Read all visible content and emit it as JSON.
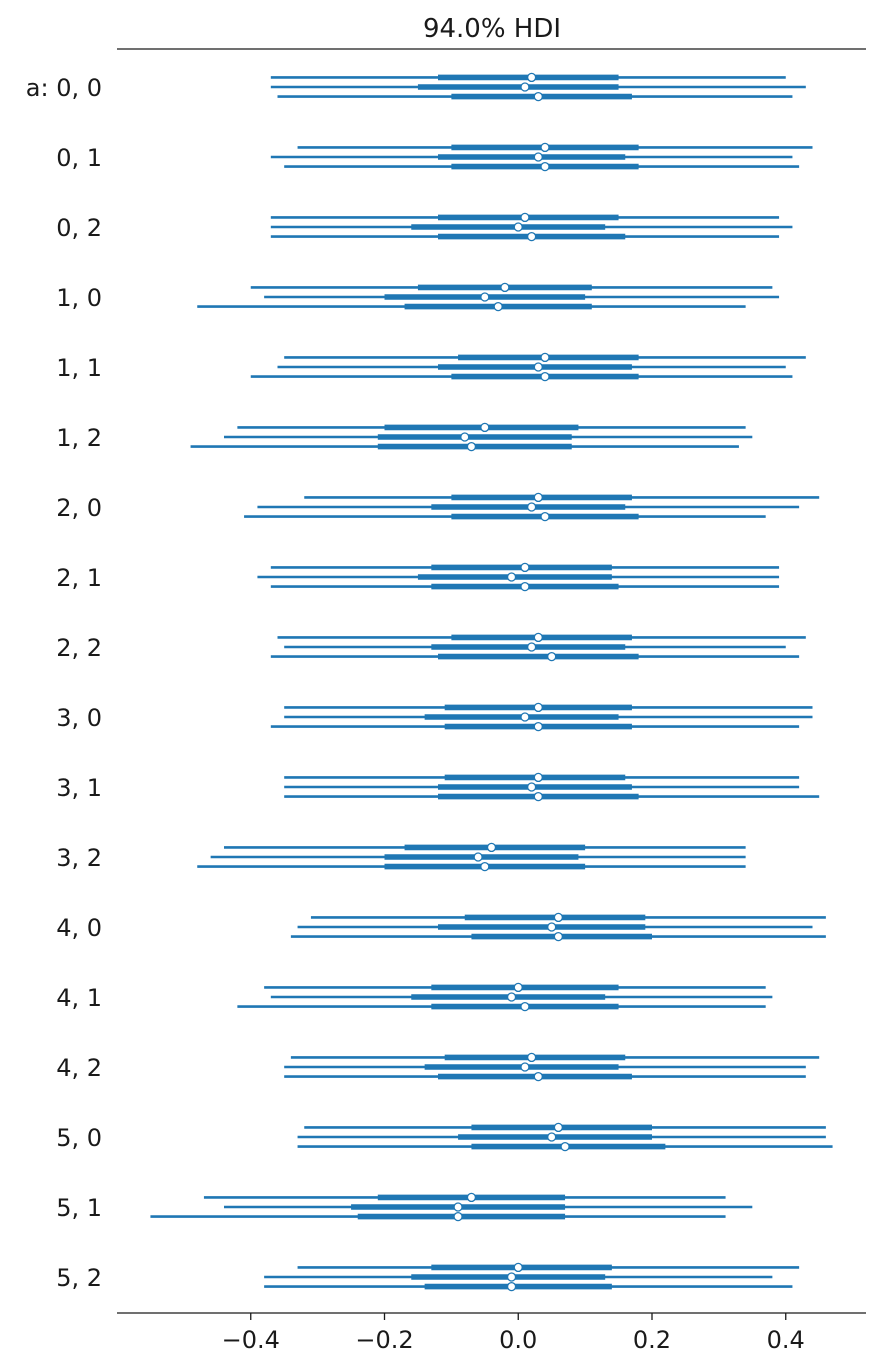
{
  "title": "94.0% HDI",
  "colors": {
    "line": "#1f77b4",
    "marker_fill": "#ffffff",
    "axis": "#1a1a1a"
  },
  "chart_data": {
    "type": "forest",
    "title": "94.0% HDI",
    "xlim": [
      -0.6,
      0.52
    ],
    "xticks": [
      -0.4,
      -0.2,
      0.0,
      0.2,
      0.4
    ],
    "xtick_labels": [
      "−0.4",
      "−0.2",
      "0.0",
      "0.2",
      "0.4"
    ],
    "grid": false,
    "chains": 3,
    "rows": [
      {
        "label": "a: 0, 0",
        "chains": [
          {
            "hdi": [
              -0.37,
              0.4
            ],
            "iqr": [
              -0.12,
              0.15
            ],
            "mean": 0.02
          },
          {
            "hdi": [
              -0.37,
              0.43
            ],
            "iqr": [
              -0.15,
              0.15
            ],
            "mean": 0.01
          },
          {
            "hdi": [
              -0.36,
              0.41
            ],
            "iqr": [
              -0.1,
              0.17
            ],
            "mean": 0.03
          }
        ]
      },
      {
        "label": "0, 1",
        "chains": [
          {
            "hdi": [
              -0.33,
              0.44
            ],
            "iqr": [
              -0.1,
              0.18
            ],
            "mean": 0.04
          },
          {
            "hdi": [
              -0.37,
              0.41
            ],
            "iqr": [
              -0.12,
              0.16
            ],
            "mean": 0.03
          },
          {
            "hdi": [
              -0.35,
              0.42
            ],
            "iqr": [
              -0.1,
              0.18
            ],
            "mean": 0.04
          }
        ]
      },
      {
        "label": "0, 2",
        "chains": [
          {
            "hdi": [
              -0.37,
              0.39
            ],
            "iqr": [
              -0.12,
              0.15
            ],
            "mean": 0.01
          },
          {
            "hdi": [
              -0.37,
              0.41
            ],
            "iqr": [
              -0.16,
              0.13
            ],
            "mean": 0.0
          },
          {
            "hdi": [
              -0.37,
              0.39
            ],
            "iqr": [
              -0.12,
              0.16
            ],
            "mean": 0.02
          }
        ]
      },
      {
        "label": "1, 0",
        "chains": [
          {
            "hdi": [
              -0.4,
              0.38
            ],
            "iqr": [
              -0.15,
              0.11
            ],
            "mean": -0.02
          },
          {
            "hdi": [
              -0.38,
              0.39
            ],
            "iqr": [
              -0.2,
              0.1
            ],
            "mean": -0.05
          },
          {
            "hdi": [
              -0.48,
              0.34
            ],
            "iqr": [
              -0.17,
              0.11
            ],
            "mean": -0.03
          }
        ]
      },
      {
        "label": "1, 1",
        "chains": [
          {
            "hdi": [
              -0.35,
              0.43
            ],
            "iqr": [
              -0.09,
              0.18
            ],
            "mean": 0.04
          },
          {
            "hdi": [
              -0.36,
              0.4
            ],
            "iqr": [
              -0.12,
              0.17
            ],
            "mean": 0.03
          },
          {
            "hdi": [
              -0.4,
              0.41
            ],
            "iqr": [
              -0.1,
              0.18
            ],
            "mean": 0.04
          }
        ]
      },
      {
        "label": "1, 2",
        "chains": [
          {
            "hdi": [
              -0.42,
              0.34
            ],
            "iqr": [
              -0.2,
              0.09
            ],
            "mean": -0.05
          },
          {
            "hdi": [
              -0.44,
              0.35
            ],
            "iqr": [
              -0.21,
              0.08
            ],
            "mean": -0.08
          },
          {
            "hdi": [
              -0.49,
              0.33
            ],
            "iqr": [
              -0.21,
              0.08
            ],
            "mean": -0.07
          }
        ]
      },
      {
        "label": "2, 0",
        "chains": [
          {
            "hdi": [
              -0.32,
              0.45
            ],
            "iqr": [
              -0.1,
              0.17
            ],
            "mean": 0.03
          },
          {
            "hdi": [
              -0.39,
              0.42
            ],
            "iqr": [
              -0.13,
              0.16
            ],
            "mean": 0.02
          },
          {
            "hdi": [
              -0.41,
              0.37
            ],
            "iqr": [
              -0.1,
              0.18
            ],
            "mean": 0.04
          }
        ]
      },
      {
        "label": "2, 1",
        "chains": [
          {
            "hdi": [
              -0.37,
              0.39
            ],
            "iqr": [
              -0.13,
              0.14
            ],
            "mean": 0.01
          },
          {
            "hdi": [
              -0.39,
              0.39
            ],
            "iqr": [
              -0.15,
              0.14
            ],
            "mean": -0.01
          },
          {
            "hdi": [
              -0.37,
              0.39
            ],
            "iqr": [
              -0.13,
              0.15
            ],
            "mean": 0.01
          }
        ]
      },
      {
        "label": "2, 2",
        "chains": [
          {
            "hdi": [
              -0.36,
              0.43
            ],
            "iqr": [
              -0.1,
              0.17
            ],
            "mean": 0.03
          },
          {
            "hdi": [
              -0.35,
              0.4
            ],
            "iqr": [
              -0.13,
              0.16
            ],
            "mean": 0.02
          },
          {
            "hdi": [
              -0.37,
              0.42
            ],
            "iqr": [
              -0.12,
              0.18
            ],
            "mean": 0.05
          }
        ]
      },
      {
        "label": "3, 0",
        "chains": [
          {
            "hdi": [
              -0.35,
              0.44
            ],
            "iqr": [
              -0.11,
              0.17
            ],
            "mean": 0.03
          },
          {
            "hdi": [
              -0.35,
              0.44
            ],
            "iqr": [
              -0.14,
              0.15
            ],
            "mean": 0.01
          },
          {
            "hdi": [
              -0.37,
              0.42
            ],
            "iqr": [
              -0.11,
              0.17
            ],
            "mean": 0.03
          }
        ]
      },
      {
        "label": "3, 1",
        "chains": [
          {
            "hdi": [
              -0.35,
              0.42
            ],
            "iqr": [
              -0.11,
              0.16
            ],
            "mean": 0.03
          },
          {
            "hdi": [
              -0.35,
              0.42
            ],
            "iqr": [
              -0.12,
              0.17
            ],
            "mean": 0.02
          },
          {
            "hdi": [
              -0.35,
              0.45
            ],
            "iqr": [
              -0.12,
              0.18
            ],
            "mean": 0.03
          }
        ]
      },
      {
        "label": "3, 2",
        "chains": [
          {
            "hdi": [
              -0.44,
              0.34
            ],
            "iqr": [
              -0.17,
              0.1
            ],
            "mean": -0.04
          },
          {
            "hdi": [
              -0.46,
              0.34
            ],
            "iqr": [
              -0.2,
              0.09
            ],
            "mean": -0.06
          },
          {
            "hdi": [
              -0.48,
              0.34
            ],
            "iqr": [
              -0.2,
              0.1
            ],
            "mean": -0.05
          }
        ]
      },
      {
        "label": "4, 0",
        "chains": [
          {
            "hdi": [
              -0.31,
              0.46
            ],
            "iqr": [
              -0.08,
              0.19
            ],
            "mean": 0.06
          },
          {
            "hdi": [
              -0.33,
              0.44
            ],
            "iqr": [
              -0.12,
              0.19
            ],
            "mean": 0.05
          },
          {
            "hdi": [
              -0.34,
              0.46
            ],
            "iqr": [
              -0.07,
              0.2
            ],
            "mean": 0.06
          }
        ]
      },
      {
        "label": "4, 1",
        "chains": [
          {
            "hdi": [
              -0.38,
              0.37
            ],
            "iqr": [
              -0.13,
              0.15
            ],
            "mean": 0.0
          },
          {
            "hdi": [
              -0.37,
              0.38
            ],
            "iqr": [
              -0.16,
              0.13
            ],
            "mean": -0.01
          },
          {
            "hdi": [
              -0.42,
              0.37
            ],
            "iqr": [
              -0.13,
              0.15
            ],
            "mean": 0.01
          }
        ]
      },
      {
        "label": "4, 2",
        "chains": [
          {
            "hdi": [
              -0.34,
              0.45
            ],
            "iqr": [
              -0.11,
              0.16
            ],
            "mean": 0.02
          },
          {
            "hdi": [
              -0.35,
              0.43
            ],
            "iqr": [
              -0.14,
              0.15
            ],
            "mean": 0.01
          },
          {
            "hdi": [
              -0.35,
              0.43
            ],
            "iqr": [
              -0.12,
              0.17
            ],
            "mean": 0.03
          }
        ]
      },
      {
        "label": "5, 0",
        "chains": [
          {
            "hdi": [
              -0.32,
              0.46
            ],
            "iqr": [
              -0.07,
              0.2
            ],
            "mean": 0.06
          },
          {
            "hdi": [
              -0.33,
              0.46
            ],
            "iqr": [
              -0.09,
              0.2
            ],
            "mean": 0.05
          },
          {
            "hdi": [
              -0.33,
              0.47
            ],
            "iqr": [
              -0.07,
              0.22
            ],
            "mean": 0.07
          }
        ]
      },
      {
        "label": "5, 1",
        "chains": [
          {
            "hdi": [
              -0.47,
              0.31
            ],
            "iqr": [
              -0.21,
              0.07
            ],
            "mean": -0.07
          },
          {
            "hdi": [
              -0.44,
              0.35
            ],
            "iqr": [
              -0.25,
              0.07
            ],
            "mean": -0.09
          },
          {
            "hdi": [
              -0.55,
              0.31
            ],
            "iqr": [
              -0.24,
              0.07
            ],
            "mean": -0.09
          }
        ]
      },
      {
        "label": "5, 2",
        "chains": [
          {
            "hdi": [
              -0.33,
              0.42
            ],
            "iqr": [
              -0.13,
              0.14
            ],
            "mean": 0.0
          },
          {
            "hdi": [
              -0.38,
              0.38
            ],
            "iqr": [
              -0.16,
              0.13
            ],
            "mean": -0.01
          },
          {
            "hdi": [
              -0.38,
              0.41
            ],
            "iqr": [
              -0.14,
              0.14
            ],
            "mean": -0.01
          }
        ]
      }
    ]
  }
}
